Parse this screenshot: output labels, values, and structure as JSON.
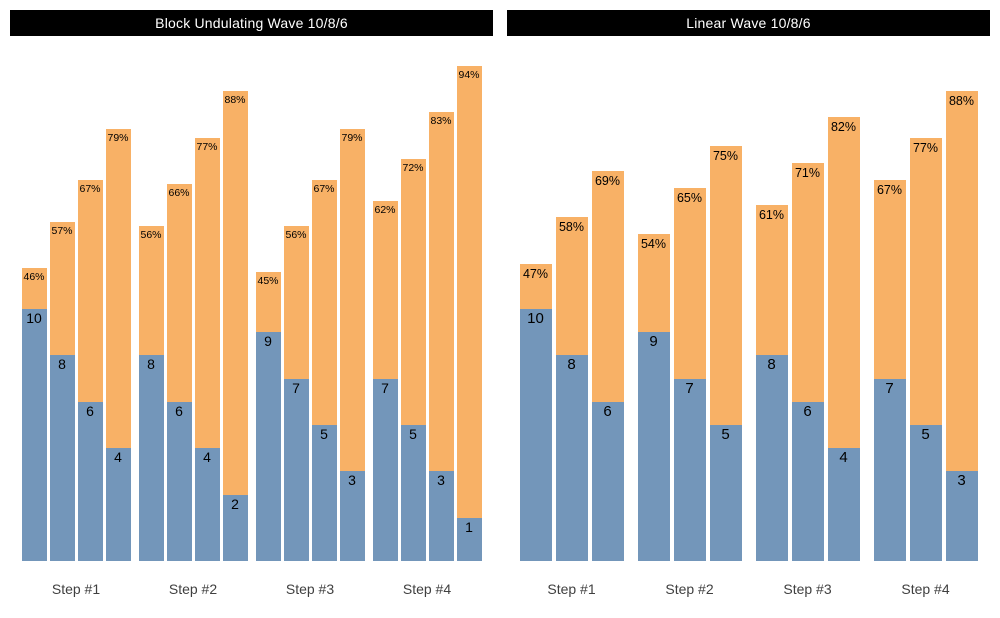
{
  "colors": {
    "reps_fill": "#7396BA",
    "intensity_fill": "#F8B166",
    "title_bg": "#000000",
    "title_text": "#FFFFFF",
    "value_text": "#000000",
    "axis_text": "#404040"
  },
  "chart_data": [
    {
      "type": "bar",
      "title": "Block Undulating Wave 10/8/6",
      "categories": [
        "Step #1",
        "Step #2",
        "Step #3",
        "Step #4"
      ],
      "series": [
        {
          "name": "reps",
          "values": [
            [
              10,
              8,
              6,
              4
            ],
            [
              8,
              6,
              4,
              2
            ],
            [
              9,
              7,
              5,
              3
            ],
            [
              7,
              5,
              3,
              1
            ]
          ]
        },
        {
          "name": "intensity_pct",
          "unit": "%",
          "values": [
            [
              46,
              57,
              67,
              79
            ],
            [
              56,
              66,
              77,
              88
            ],
            [
              45,
              56,
              67,
              79
            ],
            [
              62,
              72,
              83,
              94
            ]
          ]
        }
      ],
      "legend": "none",
      "grid": false,
      "y_axis": "hidden",
      "bar_labels": "reps shown inside blue segment, intensity % shown at top of orange segment"
    },
    {
      "type": "bar",
      "title": "Linear Wave 10/8/6",
      "categories": [
        "Step #1",
        "Step #2",
        "Step #3",
        "Step #4"
      ],
      "series": [
        {
          "name": "reps",
          "values": [
            [
              10,
              8,
              6
            ],
            [
              9,
              7,
              5
            ],
            [
              8,
              6,
              4
            ],
            [
              7,
              5,
              3
            ]
          ]
        },
        {
          "name": "intensity_pct",
          "unit": "%",
          "values": [
            [
              47,
              58,
              69
            ],
            [
              54,
              65,
              75
            ],
            [
              61,
              71,
              82
            ],
            [
              67,
              77,
              88
            ]
          ]
        }
      ],
      "legend": "none",
      "grid": false,
      "y_axis": "hidden",
      "bar_labels": "reps shown inside blue segment, intensity % shown at top of orange segment"
    }
  ]
}
